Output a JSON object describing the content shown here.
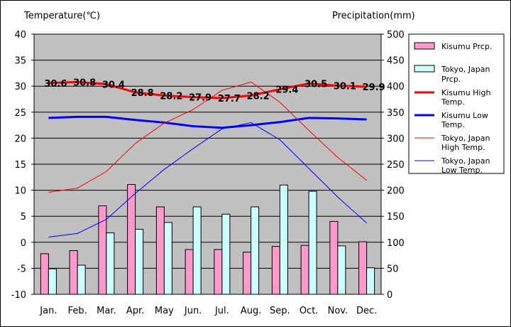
{
  "chart_data": {
    "type": "bar",
    "y_left_label": "Temperature(℃)",
    "y_right_label": "Precipitation(mm)",
    "y_left_range": [
      -10,
      40
    ],
    "y_left_ticks": [
      "40",
      "35",
      "30",
      "25",
      "20",
      "15",
      "10",
      "5",
      "0",
      "-5",
      "-10"
    ],
    "y_right_range": [
      0,
      500
    ],
    "y_right_ticks": [
      "500",
      "450",
      "400",
      "350",
      "300",
      "250",
      "200",
      "150",
      "100",
      "50",
      "0"
    ],
    "categories": [
      "Jan.",
      "Feb.",
      "Mar.",
      "Apr.",
      "May",
      "Jun.",
      "Jul.",
      "Aug.",
      "Sep.",
      "Oct.",
      "Nov.",
      "Dec."
    ],
    "grid": "horizontal",
    "legend_position": "right",
    "bar_series": [
      {
        "name": "Kisumu Prcp.",
        "color": "#ff99cc",
        "values": [
          78,
          84,
          170,
          211,
          168,
          86,
          86,
          81,
          92,
          94,
          140,
          101
        ]
      },
      {
        "name": "Tokyo, Japan Prcp.",
        "color": "#ccffff",
        "values": [
          49,
          56,
          118,
          125,
          138,
          168,
          154,
          168,
          210,
          198,
          93,
          51
        ]
      }
    ],
    "line_series": [
      {
        "name": "Kisumu High Temp.",
        "color": "#ff0000",
        "width": 3,
        "values": [
          30.6,
          30.8,
          30.4,
          28.8,
          28.2,
          27.9,
          27.7,
          28.2,
          29.4,
          30.5,
          30.1,
          29.9
        ],
        "labels": [
          "30.6",
          "30.8",
          "30.4",
          "28.8",
          "28.2",
          "27.9",
          "27.7",
          "28.2",
          "29.4",
          "30.5",
          "30.1",
          "29.9"
        ]
      },
      {
        "name": "Kisumu Low Temp.",
        "color": "#0000ff",
        "width": 3,
        "values": [
          23.9,
          24.1,
          24.1,
          23.5,
          23.0,
          22.3,
          22.0,
          22.5,
          23.1,
          23.9,
          23.8,
          23.6
        ]
      },
      {
        "name": "Tokyo, Japan High Temp.",
        "color": "#ff0000",
        "width": 1,
        "values": [
          9.6,
          10.4,
          13.6,
          19.0,
          22.9,
          25.5,
          29.2,
          30.8,
          26.9,
          21.5,
          16.3,
          11.9
        ]
      },
      {
        "name": "Tokyo, Japan Low Temp.",
        "color": "#0000ff",
        "width": 1,
        "values": [
          1.0,
          1.7,
          4.4,
          9.4,
          14.0,
          18.0,
          21.8,
          23.0,
          19.7,
          14.2,
          8.7,
          3.7
        ]
      }
    ],
    "plot_bg": "#c0c0c0"
  }
}
